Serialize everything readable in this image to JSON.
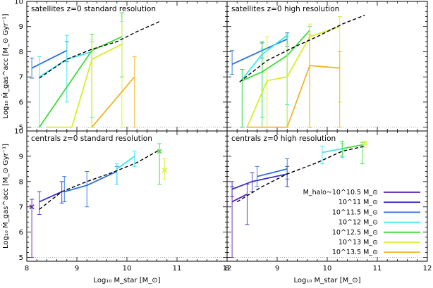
{
  "chart_data": {
    "type": "line",
    "xlabel": "Log₁₀ M_star [M_⊙]",
    "ylabel": "Log₁₀ Ṁ_gas^acc [M_⊙ Gyr⁻¹]",
    "xlim": [
      8,
      12
    ],
    "ylim": [
      4.85,
      10
    ],
    "xticks": [
      "8",
      "9",
      "10",
      "11",
      "12"
    ],
    "yticks": [
      "5",
      "6",
      "7",
      "8",
      "9",
      "10"
    ],
    "legend_placement": "bottom-right of lower-right panel",
    "legend": [
      {
        "label": "M_halo~10^10.5 M_⊙",
        "color": "#5b1fb5"
      },
      {
        "label": "10^11 M_⊙",
        "color": "#3b2fc9"
      },
      {
        "label": "10^11.5 M_⊙",
        "color": "#2a6fdc"
      },
      {
        "label": "10^12 M_⊙",
        "color": "#37e8f0"
      },
      {
        "label": "10^12.5 M_⊙",
        "color": "#3ddc3a"
      },
      {
        "label": "10^13 M_⊙",
        "color": "#d7ef2a"
      },
      {
        "label": "10^13.5 M_⊙",
        "color": "#f2b52a"
      }
    ],
    "panels": [
      {
        "title": "satellites z=0 standard resolution",
        "dashed": {
          "x": [
            8.25,
            8.8,
            9.3,
            9.8,
            10.2,
            10.65
          ],
          "y": [
            6.95,
            7.7,
            8.1,
            8.4,
            8.8,
            9.2
          ]
        },
        "series": [
          {
            "color": "#2a6fdc",
            "x": [
              8.1,
              8.8
            ],
            "y": [
              7.35,
              8.05
            ],
            "err": [
              [
                6.95,
                7.75
              ],
              [
                7.6,
                8.4
              ]
            ]
          },
          {
            "color": "#37e8f0",
            "x": [
              8.25,
              8.8,
              9.3
            ],
            "y": [
              7.0,
              7.7,
              8.0
            ],
            "err": [
              [
                5.0,
                7.8
              ],
              [
                6.0,
                8.65
              ],
              [
                5.4,
                8.4
              ]
            ]
          },
          {
            "color": "#3ddc3a",
            "x": [
              8.25,
              9.3,
              9.9
            ],
            "y": [
              5.0,
              8.05,
              8.6
            ],
            "err": [
              [
                5.0,
                5.0
              ],
              [
                5.0,
                8.7
              ],
              [
                7.0,
                9.55
              ]
            ]
          },
          {
            "color": "#d7ef2a",
            "x": [
              8.4,
              8.9,
              9.3,
              9.9
            ],
            "y": [
              5.0,
              5.0,
              7.7,
              8.3
            ],
            "err": [
              [
                5.0,
                5.0
              ],
              [
                5.0,
                5.0
              ],
              [
                5.0,
                8.5
              ],
              [
                5.0,
                9.2
              ]
            ]
          },
          {
            "color": "#f2b52a",
            "x": [
              9.3,
              10.15
            ],
            "y": [
              5.0,
              7.0
            ],
            "err": [
              [
                5.0,
                5.0
              ],
              [
                5.0,
                7.8
              ]
            ]
          }
        ]
      },
      {
        "title": "satellites z=0 high resolution",
        "dashed": {
          "x": [
            8.25,
            8.8,
            9.3,
            9.8,
            10.3,
            10.75
          ],
          "y": [
            6.8,
            7.65,
            8.15,
            8.6,
            9.1,
            9.45
          ]
        },
        "series": [
          {
            "color": "#2a6fdc",
            "x": [
              8.1,
              8.7,
              9.2
            ],
            "y": [
              7.5,
              8.05,
              8.5
            ],
            "err": [
              [
                7.1,
                8.05
              ],
              [
                7.75,
                8.35
              ],
              [
                8.2,
                8.75
              ]
            ]
          },
          {
            "color": "#37e8f0",
            "x": [
              8.3,
              8.7,
              9.2
            ],
            "y": [
              6.9,
              7.9,
              8.65
            ],
            "err": [
              [
                5.0,
                7.3
              ],
              [
                5.4,
                8.1
              ],
              [
                5.9,
                8.7
              ]
            ]
          },
          {
            "color": "#3ddc3a",
            "x": [
              8.3,
              8.7,
              9.2,
              9.65
            ],
            "y": [
              6.85,
              7.2,
              7.85,
              8.85
            ],
            "err": [
              [
                5.0,
                7.3
              ],
              [
                5.0,
                8.4
              ],
              [
                5.0,
                8.6
              ],
              [
                5.0,
                9.0
              ]
            ]
          },
          {
            "color": "#d7ef2a",
            "x": [
              8.4,
              8.8,
              9.2,
              9.65,
              10.25
            ],
            "y": [
              5.0,
              6.85,
              7.0,
              8.6,
              9.0
            ],
            "err": [
              [
                5.0,
                5.0
              ],
              [
                5.0,
                8.6
              ],
              [
                5.0,
                8.3
              ],
              [
                5.0,
                9.1
              ],
              [
                6.0,
                9.4
              ]
            ]
          },
          {
            "color": "#f2b52a",
            "x": [
              8.4,
              9.2,
              9.65,
              10.25
            ],
            "y": [
              5.0,
              5.0,
              7.45,
              7.35
            ],
            "err": [
              [
                5.0,
                5.0
              ],
              [
                5.0,
                5.0
              ],
              [
                5.0,
                8.7
              ],
              [
                5.0,
                8.0
              ]
            ]
          }
        ]
      },
      {
        "title": "centrals z=0 standard resolution",
        "dashed": {
          "x": [
            8.25,
            8.7,
            9.2,
            9.7,
            10.2,
            10.65
          ],
          "y": [
            6.9,
            7.6,
            8.0,
            8.35,
            8.75,
            9.25
          ]
        },
        "series": [
          {
            "color": "#5b1fb5",
            "x": [
              8.1
            ],
            "y": [
              7.0
            ],
            "err": [
              [
                5.0,
                7.3
              ]
            ],
            "marker": "x"
          },
          {
            "color": "#3b2fc9",
            "x": [
              8.25,
              8.7
            ],
            "y": [
              7.2,
              7.6
            ],
            "err": [
              [
                6.7,
                7.6
              ],
              [
                7.15,
                8.0
              ]
            ]
          },
          {
            "color": "#2a6fdc",
            "x": [
              8.75,
              9.2,
              9.8
            ],
            "y": [
              7.6,
              7.85,
              8.4
            ],
            "err": [
              [
                7.2,
                8.2
              ],
              [
                7.0,
                8.4
              ],
              [
                7.9,
                8.6
              ]
            ]
          },
          {
            "color": "#37e8f0",
            "x": [
              9.8,
              10.15
            ],
            "y": [
              8.5,
              9.0
            ],
            "err": [
              [
                7.9,
                8.7
              ],
              [
                8.6,
                9.2
              ]
            ]
          },
          {
            "color": "#3ddc3a",
            "x": [
              10.65
            ],
            "y": [
              9.2
            ],
            "err": [
              [
                7.9,
                9.5
              ]
            ],
            "marker": "x"
          },
          {
            "color": "#d7ef2a",
            "x": [
              10.75
            ],
            "y": [
              8.45
            ],
            "err": [
              [
                8.1,
                8.9
              ]
            ],
            "marker": "x"
          }
        ]
      },
      {
        "title": "centrals z=0 high resolution",
        "dashed": {
          "x": [
            8.2,
            8.7,
            9.2,
            9.8,
            10.3,
            10.75
          ],
          "y": [
            7.2,
            7.8,
            8.3,
            8.75,
            9.2,
            9.4
          ]
        },
        "series": [
          {
            "color": "#5b1fb5",
            "x": [
              8.1,
              8.4
            ],
            "y": [
              7.2,
              7.5
            ],
            "err": [
              [
                5.0,
                7.8
              ],
              [
                6.3,
                7.9
              ]
            ]
          },
          {
            "color": "#3b2fc9",
            "x": [
              8.1,
              8.5,
              9.2
            ],
            "y": [
              7.7,
              8.0,
              8.3
            ],
            "err": [
              [
                7.4,
                8.0
              ],
              [
                7.6,
                8.35
              ],
              [
                7.8,
                8.6
              ]
            ]
          },
          {
            "color": "#2a6fdc",
            "x": [
              8.6,
              9.2
            ],
            "y": [
              8.2,
              8.5
            ],
            "err": [
              [
                7.8,
                8.6
              ],
              [
                8.1,
                8.9
              ]
            ]
          },
          {
            "color": "#37e8f0",
            "x": [
              9.9,
              10.3
            ],
            "y": [
              9.15,
              9.3
            ],
            "err": [
              [
                8.7,
                9.4
              ],
              [
                8.95,
                9.5
              ]
            ]
          },
          {
            "color": "#3ddc3a",
            "x": [
              10.3,
              10.7
            ],
            "y": [
              9.3,
              9.45
            ],
            "err": [
              [
                9.0,
                9.6
              ],
              [
                8.7,
                9.55
              ]
            ]
          },
          {
            "color": "#d7ef2a",
            "x": [
              10.75
            ],
            "y": [
              9.5
            ],
            "err": [
              [
                9.35,
                9.6
              ]
            ],
            "marker": "x"
          }
        ]
      }
    ]
  }
}
